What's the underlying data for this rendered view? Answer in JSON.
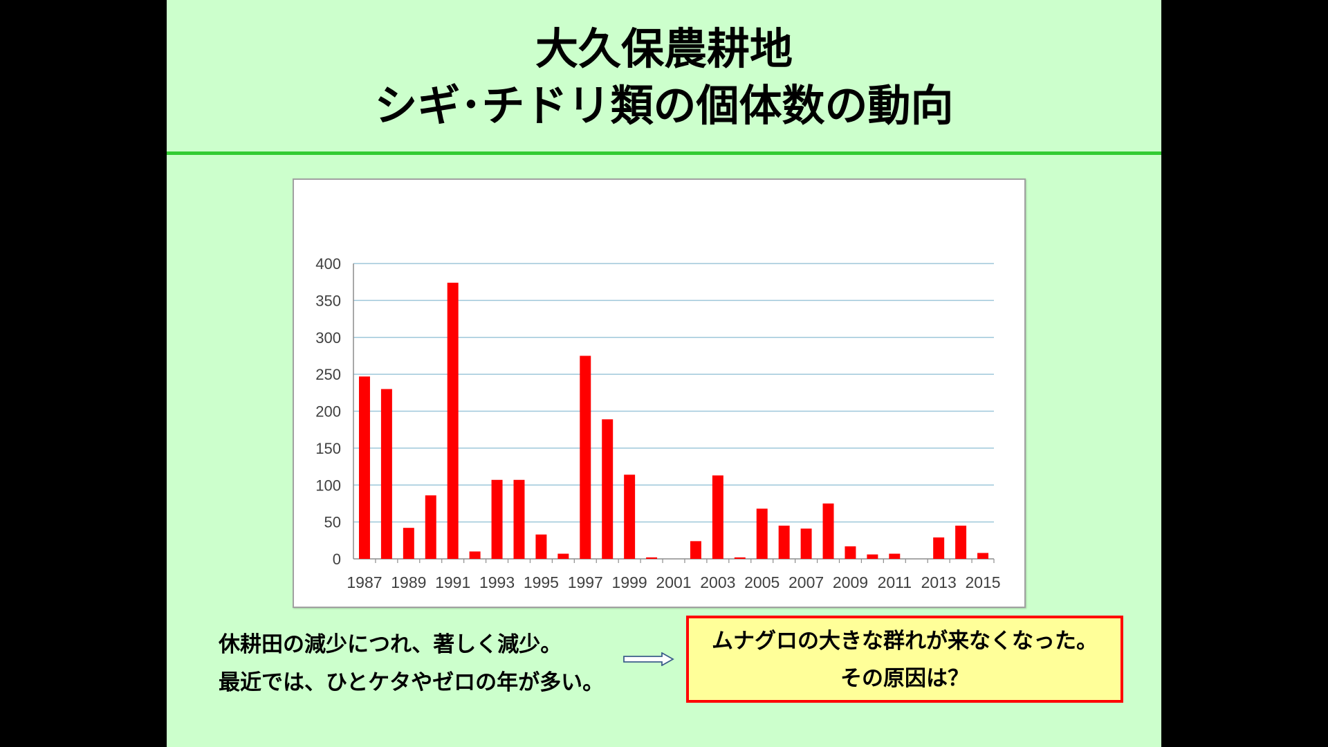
{
  "slide": {
    "title_lines": [
      "大久保農耕地",
      "シギ･チドリ類の個体数の動向"
    ],
    "note_lines": [
      "休耕田の減少につれ、著しく減少。",
      "最近では、ひとケタやゼロの年が多い。"
    ],
    "callout_lines": [
      "ムナグロの大きな群れが来なくなった。",
      "その原因は？"
    ],
    "colors": {
      "background": "#ccffcc",
      "divider": "#33cc33",
      "callout_border": "#ff0000",
      "callout_fill": "#ffff99"
    }
  },
  "chart_data": {
    "type": "bar",
    "categories": [
      "1987",
      "1988",
      "1989",
      "1990",
      "1991",
      "1992",
      "1993",
      "1994",
      "1995",
      "1996",
      "1997",
      "1998",
      "1999",
      "2000",
      "2001",
      "2002",
      "2003",
      "2004",
      "2005",
      "2006",
      "2007",
      "2008",
      "2009",
      "2010",
      "2011",
      "2012",
      "2013",
      "2014",
      "2015"
    ],
    "x_tick_labels": [
      "1987",
      "1989",
      "1991",
      "1993",
      "1995",
      "1997",
      "1999",
      "2001",
      "2003",
      "2005",
      "2007",
      "2009",
      "2011",
      "2013",
      "2015"
    ],
    "values": [
      247,
      230,
      42,
      86,
      374,
      10,
      107,
      107,
      33,
      7,
      275,
      189,
      114,
      2,
      0,
      24,
      113,
      2,
      68,
      45,
      41,
      75,
      17,
      6,
      7,
      0,
      29,
      45,
      8
    ],
    "ylim": [
      0,
      400
    ],
    "y_ticks": [
      0,
      50,
      100,
      150,
      200,
      250,
      300,
      350,
      400
    ],
    "grid": true,
    "bar_color": "#ff0000",
    "grid_color": "#9ec7da"
  }
}
